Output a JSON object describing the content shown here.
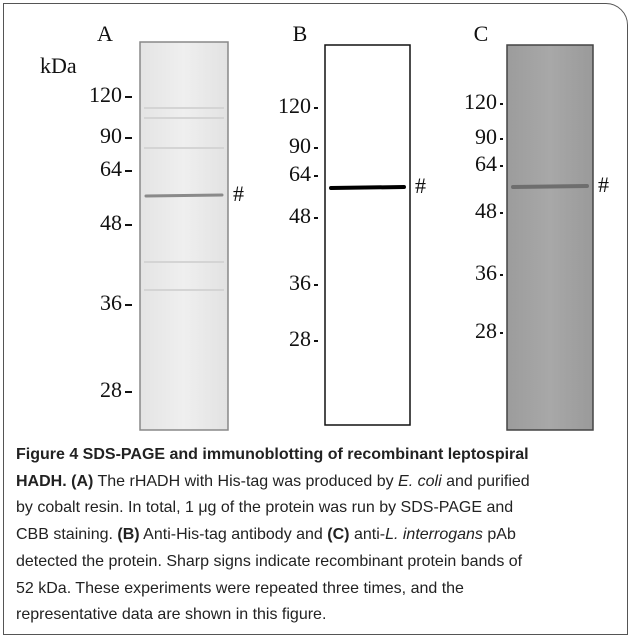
{
  "figure": {
    "panels": [
      {
        "label": "A",
        "unit": "kDa",
        "markers": [
          "120",
          "90",
          "64",
          "48",
          "36",
          "28"
        ],
        "band": "#"
      },
      {
        "label": "B",
        "markers": [
          "120",
          "90",
          "64",
          "48",
          "36",
          "28"
        ],
        "band": "#"
      },
      {
        "label": "C",
        "markers": [
          "120",
          "90",
          "64",
          "48",
          "36",
          "28"
        ],
        "band": "#"
      }
    ],
    "caption": {
      "runs": [
        "Figure 4 SDS-PAGE and immunoblotting of recombinant leptospiral",
        "HADH. (A)",
        " The rHADH with His-tag was produced by ",
        "E. coli",
        " and purified",
        "by cobalt resin. In total, 1 μg of the protein was run by SDS-PAGE and",
        "CBB staining. ",
        "(B)",
        " Anti-His-tag antibody and ",
        "(C)",
        " anti-",
        "L. interrogans",
        " pAb",
        "detected the protein. Sharp signs indicate recombinant protein bands of",
        "52 kDa. These experiments were repeated three times, and the",
        "representative data are shown in this figure."
      ]
    }
  }
}
